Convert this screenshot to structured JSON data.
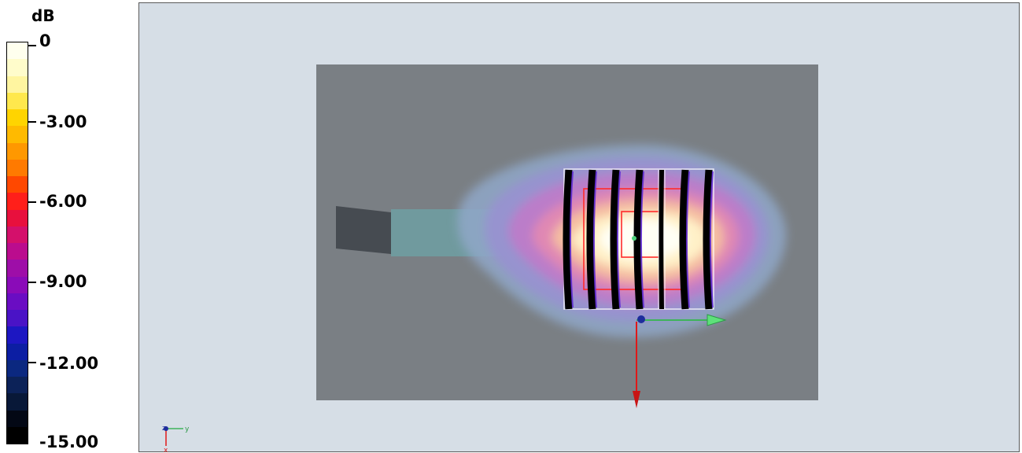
{
  "legend": {
    "unit": "dB",
    "ticks": [
      "0",
      "-3.00",
      "-6.00",
      "-9.00",
      "-12.00",
      "-15.00"
    ],
    "colors": [
      "#ffffee",
      "#fffccb",
      "#fff5a0",
      "#ffe84d",
      "#ffd400",
      "#ffba00",
      "#ff9800",
      "#ff7a00",
      "#ff4800",
      "#ff1f1a",
      "#e8103d",
      "#d4106b",
      "#bb0c8e",
      "#9e0ea8",
      "#8a0bb8",
      "#6a0dc3",
      "#4a13c6",
      "#1d17c2",
      "#0c1ea3",
      "#0b2880",
      "#0c2258",
      "#081838",
      "#030815",
      "#000000"
    ]
  },
  "viewport": {
    "background": "#d6dee6",
    "axis_triad": {
      "z": "z",
      "y": "y",
      "x": "x"
    }
  }
}
